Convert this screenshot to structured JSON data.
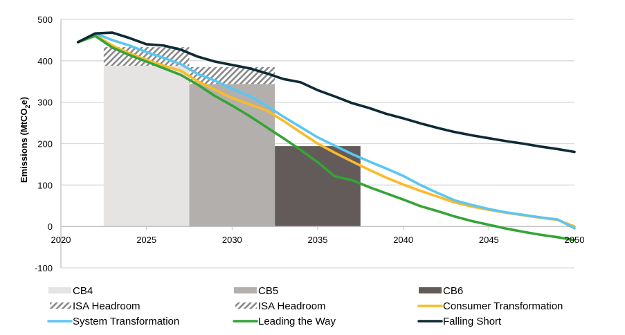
{
  "chart_data": {
    "type": "line",
    "title": "",
    "xlabel": "",
    "ylabel": "Emissions (MtCO2e)",
    "ylabel_parts": {
      "main": "Emissions  (MtCO",
      "sub": "2",
      "tail": "e)"
    },
    "xlim": [
      2020,
      2050
    ],
    "ylim": [
      -100,
      500
    ],
    "xticks": [
      2020,
      2025,
      2030,
      2035,
      2040,
      2045,
      2050
    ],
    "yticks": [
      -100,
      0,
      100,
      200,
      300,
      400,
      500
    ],
    "grid": "horizontal",
    "legend_position": "bottom",
    "budget_bars": [
      {
        "name": "CB4",
        "x_start": 2022.5,
        "x_end": 2027.5,
        "value": 388,
        "headroom_top": 433,
        "color": "#e5e4e3"
      },
      {
        "name": "CB5",
        "x_start": 2027.5,
        "x_end": 2032.5,
        "value": 344,
        "headroom_top": 385,
        "color": "#b3afad"
      },
      {
        "name": "CB6",
        "x_start": 2032.5,
        "x_end": 2037.5,
        "value": 194,
        "headroom_top": null,
        "color": "#625b5a"
      }
    ],
    "x": [
      2021,
      2022,
      2023,
      2024,
      2025,
      2026,
      2027,
      2028,
      2029,
      2030,
      2031,
      2032,
      2033,
      2034,
      2035,
      2036,
      2037,
      2038,
      2039,
      2040,
      2041,
      2042,
      2043,
      2044,
      2045,
      2046,
      2047,
      2048,
      2049,
      2050
    ],
    "series": [
      {
        "name": "Consumer Transformation",
        "color": "#fbba2a",
        "values": [
          445,
          462,
          437,
          418,
          402,
          388,
          376,
          350,
          330,
          310,
          295,
          280,
          255,
          227,
          200,
          178,
          157,
          137,
          118,
          101,
          86,
          72,
          58,
          48,
          40,
          33,
          27,
          21,
          16,
          0
        ]
      },
      {
        "name": "System Transformation",
        "color": "#5bc6f2",
        "values": [
          445,
          466,
          450,
          437,
          421,
          407,
          392,
          368,
          352,
          332,
          315,
          292,
          265,
          240,
          215,
          195,
          175,
          157,
          140,
          122,
          100,
          81,
          63,
          52,
          42,
          34,
          28,
          22,
          17,
          -4
        ]
      },
      {
        "name": "Leading the Way",
        "color": "#34a436",
        "values": [
          445,
          460,
          432,
          414,
          398,
          382,
          366,
          342,
          315,
          292,
          267,
          240,
          213,
          185,
          155,
          121,
          112,
          95,
          80,
          65,
          49,
          37,
          24,
          13,
          4,
          -5,
          -13,
          -20,
          -26,
          -33
        ]
      },
      {
        "name": "Falling Short",
        "color": "#0e2a35",
        "values": [
          445,
          466,
          468,
          455,
          440,
          437,
          427,
          410,
          398,
          390,
          382,
          370,
          356,
          348,
          329,
          314,
          298,
          286,
          272,
          261,
          249,
          238,
          228,
          220,
          213,
          206,
          200,
          193,
          187,
          180
        ]
      }
    ],
    "legend": [
      {
        "label": "CB4",
        "kind": "swatch",
        "color": "#e5e4e3"
      },
      {
        "label": "CB5",
        "kind": "swatch",
        "color": "#b3afad"
      },
      {
        "label": "CB6",
        "kind": "swatch",
        "color": "#625b5a"
      },
      {
        "label": "ISA Headroom",
        "kind": "hatch",
        "color": "#888888"
      },
      {
        "label": "ISA Headroom",
        "kind": "hatch",
        "color": "#888888"
      },
      {
        "label": "Consumer Transformation",
        "kind": "line",
        "color": "#fbba2a"
      },
      {
        "label": "System Transformation",
        "kind": "line",
        "color": "#5bc6f2"
      },
      {
        "label": "Leading the Way",
        "kind": "line",
        "color": "#34a436"
      },
      {
        "label": "Falling Short",
        "kind": "line",
        "color": "#0e2a35"
      }
    ]
  }
}
